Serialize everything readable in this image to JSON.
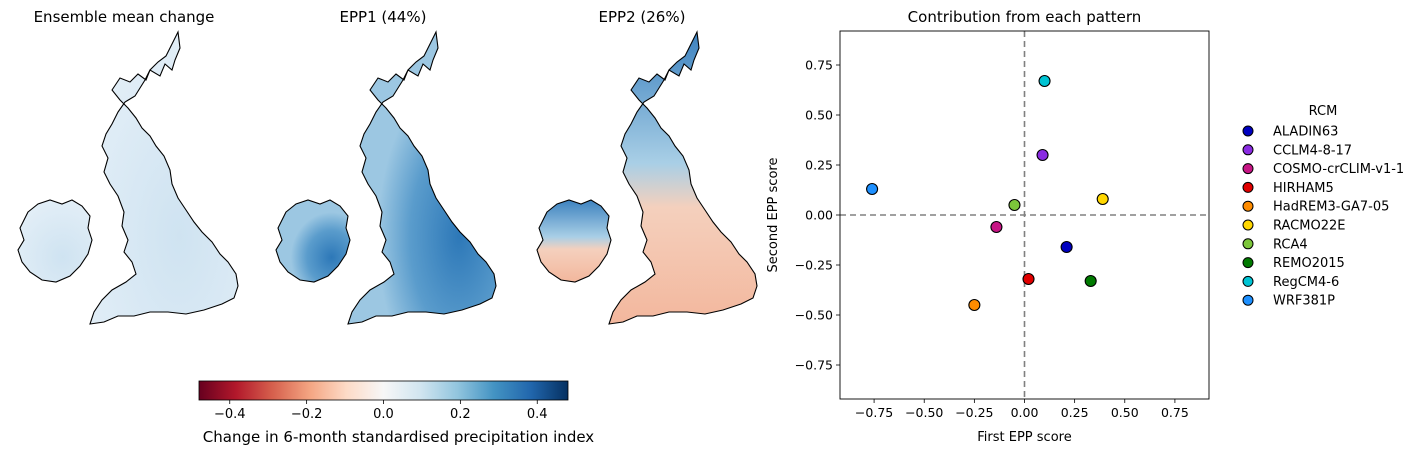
{
  "maps": [
    {
      "title": "Ensemble mean change"
    },
    {
      "title": "EPP1 (44%)"
    },
    {
      "title": "EPP2 (26%)"
    }
  ],
  "colorbar": {
    "label": "Change in 6-month standardised precipitation index",
    "range": [
      -0.48,
      0.48
    ],
    "ticks": [
      "−0.4",
      "−0.2",
      "0.0",
      "0.2",
      "0.4"
    ],
    "tick_values": [
      -0.4,
      -0.2,
      0.0,
      0.2,
      0.4
    ],
    "colormap": "RdBu"
  },
  "chart_data": {
    "type": "scatter",
    "title": "Contribution from each pattern",
    "xlabel": "First EPP score",
    "ylabel": "Second EPP score",
    "xlim": [
      -0.92,
      0.92
    ],
    "ylim": [
      -0.92,
      0.92
    ],
    "xticks": [
      "−0.75",
      "−0.50",
      "−0.25",
      "0.00",
      "0.25",
      "0.50",
      "0.75"
    ],
    "yticks": [
      "−0.75",
      "−0.50",
      "−0.25",
      "0.00",
      "0.25",
      "0.50",
      "0.75"
    ],
    "tick_values": [
      -0.75,
      -0.5,
      -0.25,
      0.0,
      0.25,
      0.5,
      0.75
    ],
    "reference_lines": {
      "x": 0,
      "y": 0,
      "style": "dashed"
    },
    "legend_title": "RCM",
    "legend_position": "outside-right",
    "series": [
      {
        "name": "ALADIN63",
        "x": 0.21,
        "y": -0.16,
        "color": "#0000c0"
      },
      {
        "name": "CCLM4-8-17",
        "x": 0.09,
        "y": 0.3,
        "color": "#8a2be2"
      },
      {
        "name": "COSMO-crCLIM-v1-1",
        "x": -0.14,
        "y": -0.06,
        "color": "#c71585"
      },
      {
        "name": "HIRHAM5",
        "x": 0.02,
        "y": -0.32,
        "color": "#e00000"
      },
      {
        "name": "HadREM3-GA7-05",
        "x": -0.25,
        "y": -0.45,
        "color": "#ff8c00"
      },
      {
        "name": "RACMO22E",
        "x": 0.39,
        "y": 0.08,
        "color": "#ffd700"
      },
      {
        "name": "RCA4",
        "x": -0.05,
        "y": 0.05,
        "color": "#7cc63a"
      },
      {
        "name": "REMO2015",
        "x": 0.33,
        "y": -0.33,
        "color": "#007a00"
      },
      {
        "name": "RegCM4-6",
        "x": 0.1,
        "y": 0.67,
        "color": "#00c4d4"
      },
      {
        "name": "WRF381P",
        "x": -0.76,
        "y": 0.13,
        "color": "#1e90ff"
      }
    ]
  }
}
